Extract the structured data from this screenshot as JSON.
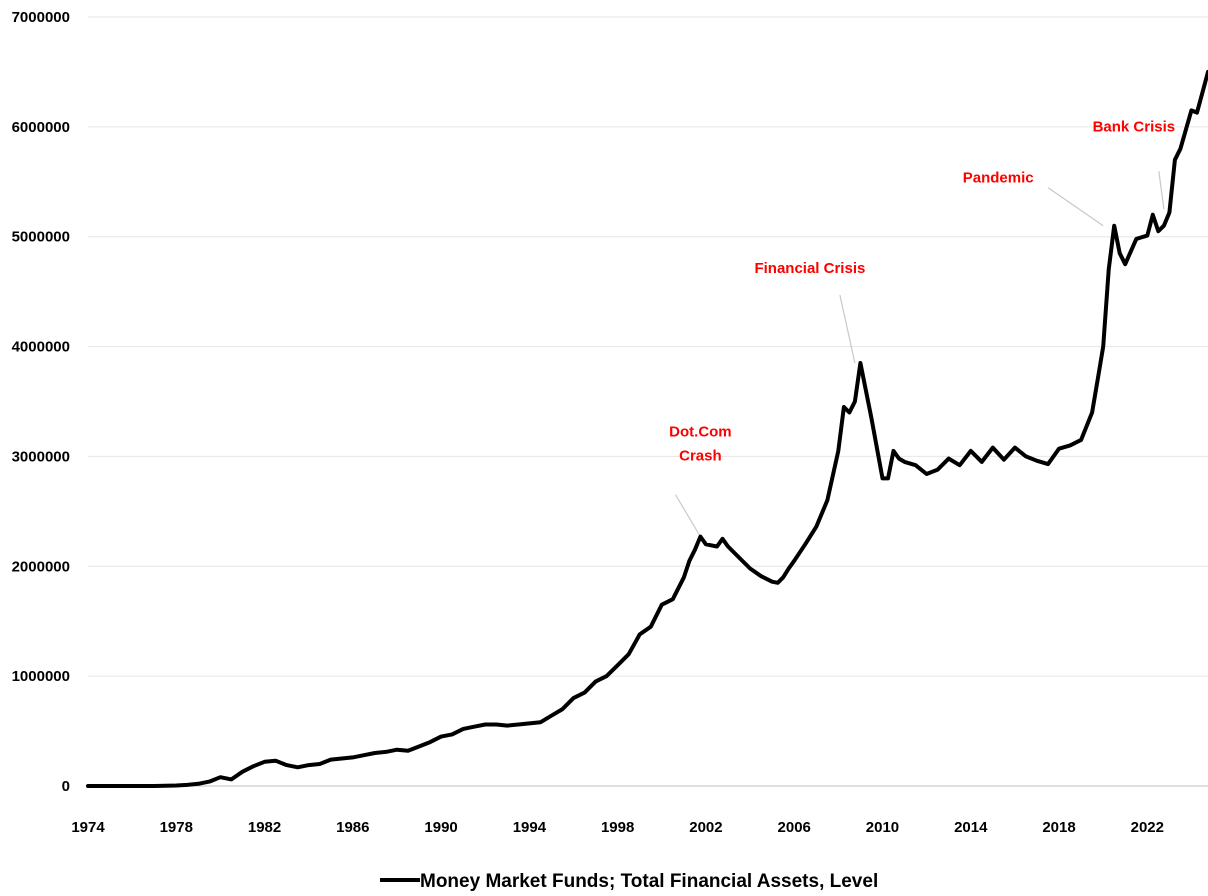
{
  "colors": {
    "series": "#000000",
    "annotation": "#ff0000",
    "leader": "#c8c8c8",
    "grid": "#e6e6e6",
    "axis": "#bfbfbf"
  },
  "chart_data": {
    "type": "line",
    "title": "",
    "xlabel": "",
    "ylabel": "",
    "xlim": [
      1974,
      2024.75
    ],
    "ylim": [
      0,
      7000000
    ],
    "grid": "horizontal",
    "legend_position": "bottom-center",
    "x_ticks": [
      "1974",
      "1978",
      "1982",
      "1986",
      "1990",
      "1994",
      "1998",
      "2002",
      "2006",
      "2010",
      "2014",
      "2018",
      "2022"
    ],
    "y_ticks": [
      "0",
      "1000000",
      "2000000",
      "3000000",
      "4000000",
      "5000000",
      "6000000",
      "7000000"
    ],
    "series": [
      {
        "name": "Money Market Funds; Total Financial Assets, Level",
        "x": [
          1974,
          1975,
          1976,
          1977,
          1978,
          1978.5,
          1979,
          1979.5,
          1980,
          1980.5,
          1981,
          1981.5,
          1982,
          1982.5,
          1983,
          1983.5,
          1984,
          1984.5,
          1985,
          1985.5,
          1986,
          1986.5,
          1987,
          1987.5,
          1988,
          1988.5,
          1989,
          1989.5,
          1990,
          1990.5,
          1991,
          1991.5,
          1992,
          1992.5,
          1993,
          1993.5,
          1994,
          1994.5,
          1995,
          1995.5,
          1996,
          1996.5,
          1997,
          1997.5,
          1998,
          1998.5,
          1999,
          1999.5,
          2000,
          2000.5,
          2001,
          2001.25,
          2001.5,
          2001.75,
          2002,
          2002.5,
          2002.75,
          2003,
          2003.5,
          2004,
          2004.5,
          2005,
          2005.25,
          2005.5,
          2005.75,
          2006,
          2006.5,
          2007,
          2007.5,
          2008,
          2008.25,
          2008.5,
          2008.75,
          2009,
          2009.5,
          2010,
          2010.25,
          2010.5,
          2010.75,
          2011,
          2011.5,
          2012,
          2012.5,
          2013,
          2013.5,
          2014,
          2014.5,
          2015,
          2015.5,
          2016,
          2016.5,
          2017,
          2017.5,
          2018,
          2018.5,
          2019,
          2019.5,
          2019.75,
          2020,
          2020.25,
          2020.5,
          2020.75,
          2021,
          2021.5,
          2022,
          2022.25,
          2022.5,
          2022.75,
          2023,
          2023.25,
          2023.5,
          2024,
          2024.25,
          2024.75
        ],
        "values": [
          0,
          0,
          0,
          0,
          5000,
          10000,
          20000,
          40000,
          80000,
          60000,
          130000,
          180000,
          220000,
          230000,
          190000,
          170000,
          190000,
          200000,
          240000,
          250000,
          260000,
          280000,
          300000,
          310000,
          330000,
          320000,
          360000,
          400000,
          450000,
          470000,
          520000,
          540000,
          560000,
          560000,
          550000,
          560000,
          570000,
          580000,
          640000,
          700000,
          800000,
          850000,
          950000,
          1000000,
          1100000,
          1200000,
          1380000,
          1450000,
          1650000,
          1700000,
          1900000,
          2050000,
          2150000,
          2270000,
          2200000,
          2180000,
          2250000,
          2180000,
          2080000,
          1980000,
          1910000,
          1860000,
          1850000,
          1900000,
          1980000,
          2050000,
          2200000,
          2360000,
          2600000,
          3050000,
          3450000,
          3400000,
          3500000,
          3850000,
          3350000,
          2800000,
          2800000,
          3050000,
          2980000,
          2950000,
          2920000,
          2840000,
          2880000,
          2980000,
          2920000,
          3050000,
          2950000,
          3080000,
          2970000,
          3080000,
          3000000,
          2960000,
          2930000,
          3070000,
          3100000,
          3150000,
          3400000,
          3700000,
          4000000,
          4700000,
          5100000,
          4850000,
          4750000,
          4980000,
          5010000,
          5200000,
          5050000,
          5100000,
          5220000,
          5700000,
          5800000,
          6150000,
          6130000,
          6500000
        ]
      }
    ],
    "annotations": [
      {
        "lines": [
          "Dot.Com",
          "Crash"
        ],
        "x": 2001.75,
        "y": 2270000
      },
      {
        "lines": [
          "Financial Crisis"
        ],
        "x": 2008.75,
        "y": 3850000
      },
      {
        "lines": [
          "Pandemic"
        ],
        "x": 2020,
        "y": 5100000
      },
      {
        "lines": [
          "Bank Crisis"
        ],
        "x": 2022.75,
        "y": 5250000
      }
    ]
  }
}
